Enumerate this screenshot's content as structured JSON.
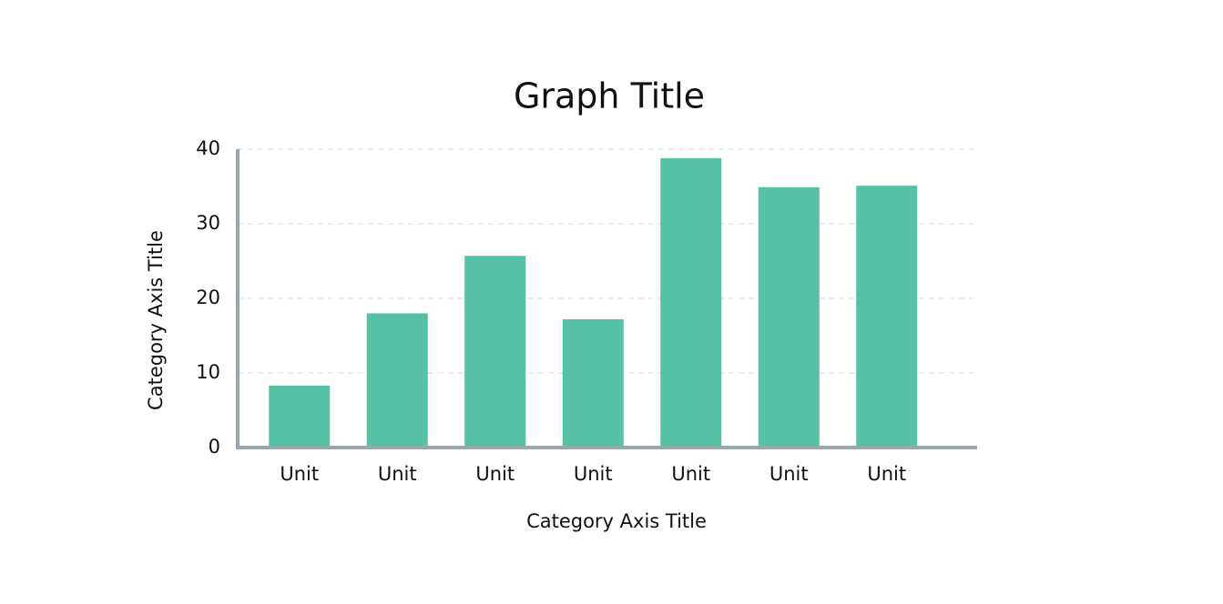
{
  "chart_data": {
    "type": "bar",
    "title": "Graph Title",
    "x_axis_title": "Category Axis Title",
    "y_axis_title": "Category Axis Title",
    "categories": [
      "Unit",
      "Unit",
      "Unit",
      "Unit",
      "Unit",
      "Unit",
      "Unit"
    ],
    "values": [
      8.3,
      18,
      25.7,
      17.2,
      38.8,
      34.9,
      35.1
    ],
    "color": "#55c1a5",
    "ylim": [
      0,
      40
    ],
    "yticks": [
      0,
      10,
      20,
      30,
      40
    ],
    "grid": true
  }
}
